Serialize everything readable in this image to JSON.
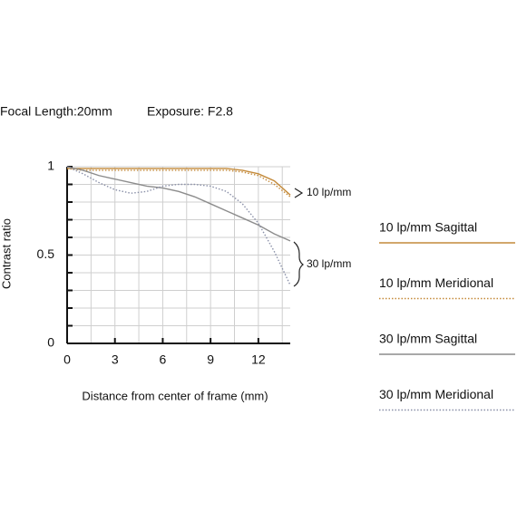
{
  "chart_data": {
    "type": "line",
    "header": [
      "Focal Length:20mm",
      "Exposure: F2.8"
    ],
    "xlabel": "Distance from center of frame (mm)",
    "ylabel": "Contrast ratio",
    "x": [
      0,
      1,
      2,
      3,
      4,
      5,
      6,
      7,
      8,
      9,
      10,
      11,
      12,
      13,
      14
    ],
    "series": [
      {
        "name": "10 lp/mm Sagittal",
        "color": "#c48a3a",
        "style": "solid",
        "values": [
          0.99,
          0.99,
          0.99,
          0.99,
          0.99,
          0.99,
          0.99,
          0.99,
          0.99,
          0.99,
          0.99,
          0.98,
          0.96,
          0.92,
          0.84
        ]
      },
      {
        "name": "10 lp/mm Meridional",
        "color": "#c48a3a",
        "style": "dotted",
        "values": [
          0.99,
          0.98,
          0.98,
          0.98,
          0.98,
          0.98,
          0.98,
          0.98,
          0.98,
          0.98,
          0.98,
          0.97,
          0.95,
          0.9,
          0.83
        ]
      },
      {
        "name": "30 lp/mm Sagittal",
        "color": "#8c8c8c",
        "style": "solid",
        "values": [
          1.0,
          0.98,
          0.95,
          0.93,
          0.91,
          0.89,
          0.88,
          0.86,
          0.83,
          0.79,
          0.75,
          0.71,
          0.67,
          0.62,
          0.58
        ]
      },
      {
        "name": "30 lp/mm Meridional",
        "color": "#8a90a8",
        "style": "dotted",
        "values": [
          1.0,
          0.96,
          0.91,
          0.87,
          0.85,
          0.86,
          0.89,
          0.9,
          0.9,
          0.89,
          0.86,
          0.79,
          0.68,
          0.52,
          0.33
        ]
      }
    ],
    "annotations": [
      "10 lp/mm",
      "30 lp/mm"
    ],
    "xlim": [
      0,
      14
    ],
    "ylim": [
      0,
      1
    ],
    "xticks": [
      0,
      3,
      6,
      9,
      12
    ],
    "yticks": [
      0,
      0.5,
      1
    ],
    "x_grid": [
      0,
      1.5,
      3,
      4.5,
      6,
      7.5,
      9,
      10.5,
      12,
      13.5
    ],
    "y_grid": [
      0.1,
      0.2,
      0.3,
      0.4,
      0.5,
      0.6,
      0.7,
      0.8,
      0.9,
      1
    ],
    "grid": true
  }
}
